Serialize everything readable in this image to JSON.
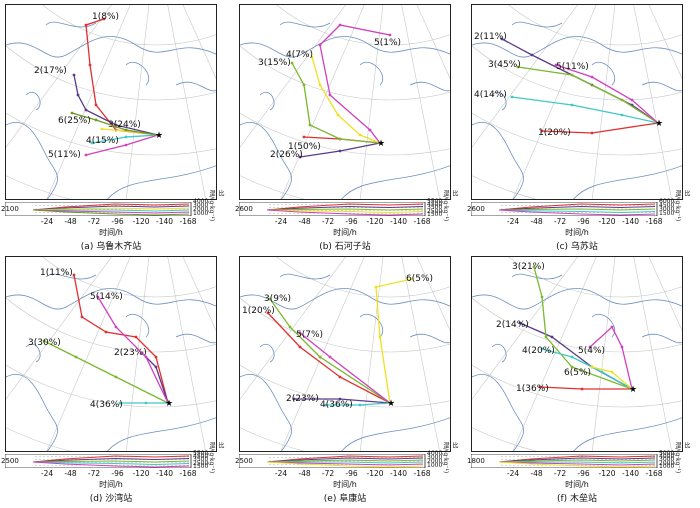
{
  "x_axis_label": "时间/h",
  "y_axis_label": "比湿/(g·kg⁻¹)",
  "x_ticks": [
    "-24",
    "-48",
    "-72",
    "-96",
    "-120",
    "-140",
    "-168"
  ],
  "panels": [
    {
      "caption": "(a) 乌鲁木齐站",
      "start_height": "2100",
      "ticks": [
        "4000",
        "3000",
        "2000",
        "1000"
      ],
      "traj": [
        {
          "label": "1(8%)",
          "color": "#e03030"
        },
        {
          "label": "2(17%)",
          "color": "#5b3a8c"
        },
        {
          "label": "3(24%)",
          "color": "#f0e020"
        },
        {
          "label": "4(15%)",
          "color": "#40c8c8"
        },
        {
          "label": "5(11%)",
          "color": "#d040c0"
        },
        {
          "label": "6(25%)",
          "color": "#6a9a20"
        }
      ]
    },
    {
      "caption": "(b) 石河子站",
      "start_height": "2600",
      "ticks": [
        "5500",
        "4500",
        "3500",
        "2500",
        "1500"
      ],
      "traj": [
        {
          "label": "1(50%)",
          "color": "#e03030"
        },
        {
          "label": "2(26%)",
          "color": "#5b3a8c"
        },
        {
          "label": "3(15%)",
          "color": "#7ab82e"
        },
        {
          "label": "4(7%)",
          "color": "#f0e020"
        },
        {
          "label": "5(1%)",
          "color": "#d040c0"
        }
      ]
    },
    {
      "caption": "(c) 乌苏站",
      "start_height": "2600",
      "ticks": [
        "6000",
        "4500",
        "3000",
        "1500"
      ],
      "traj": [
        {
          "label": "1(20%)",
          "color": "#e03030"
        },
        {
          "label": "2(11%)",
          "color": "#5b3a8c"
        },
        {
          "label": "3(45%)",
          "color": "#7ab82e"
        },
        {
          "label": "4(14%)",
          "color": "#40c8c8"
        },
        {
          "label": "5(11%)",
          "color": "#d040c0"
        }
      ]
    },
    {
      "caption": "(d) 沙湾站",
      "start_height": "2500",
      "ticks": [
        "5500",
        "4500",
        "3500",
        "2500",
        "1500"
      ],
      "traj": [
        {
          "label": "1(11%)",
          "color": "#e03030"
        },
        {
          "label": "2(23%)",
          "color": "#5b3a8c"
        },
        {
          "label": "3(30%)",
          "color": "#7ab82e"
        },
        {
          "label": "4(36%)",
          "color": "#40c8c8"
        },
        {
          "label": "5(14%)",
          "color": "#d040c0"
        }
      ]
    },
    {
      "caption": "(e) 阜康站",
      "start_height": "2500",
      "ticks": [
        "4000",
        "3000",
        "2000",
        "1000"
      ],
      "traj": [
        {
          "label": "1(20%)",
          "color": "#e03030"
        },
        {
          "label": "2(23%)",
          "color": "#5b3a8c"
        },
        {
          "label": "3(9%)",
          "color": "#7ab82e"
        },
        {
          "label": "4(36%)",
          "color": "#40c8c8"
        },
        {
          "label": "5(7%)",
          "color": "#d040c0"
        },
        {
          "label": "6(5%)",
          "color": "#f0e020"
        }
      ]
    },
    {
      "caption": "(f) 木垒站",
      "start_height": "1800",
      "ticks": [
        "5000",
        "4000",
        "3000",
        "2000",
        "1000"
      ],
      "traj": [
        {
          "label": "1(36%)",
          "color": "#e03030"
        },
        {
          "label": "2(14%)",
          "color": "#5b3a8c"
        },
        {
          "label": "3(21%)",
          "color": "#7ab82e"
        },
        {
          "label": "4(20%)",
          "color": "#40c8c8"
        },
        {
          "label": "5(4%)",
          "color": "#d040c0"
        },
        {
          "label": "6(5%)",
          "color": "#f0e020"
        }
      ]
    }
  ]
}
